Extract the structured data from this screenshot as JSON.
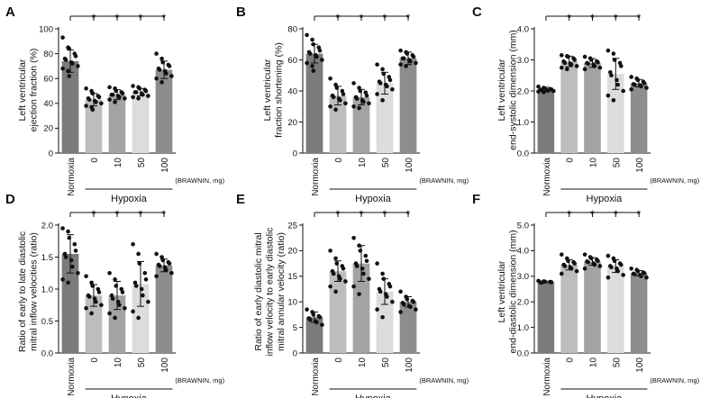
{
  "chart_data": [
    {
      "type": "bar",
      "panel": "A",
      "ylabel_lines": [
        "Left ventricular",
        "ejection fraction (%)"
      ],
      "ylim": [
        0,
        100
      ],
      "yticks": [
        0,
        20,
        40,
        60,
        80,
        100
      ],
      "categories": [
        "Normoxia",
        "0",
        "10",
        "50",
        "100"
      ],
      "group_label": "Hypoxia",
      "unit_label": "(BRAWNIN, mg)",
      "values": [
        74,
        43,
        47,
        49,
        67
      ],
      "errors": [
        9,
        5,
        4,
        3,
        7
      ],
      "points": [
        [
          93,
          85,
          84,
          80,
          78,
          76,
          75,
          73,
          72,
          70,
          68,
          66,
          62
        ],
        [
          52,
          50,
          48,
          46,
          45,
          44,
          43,
          42,
          41,
          40,
          38,
          37,
          35
        ],
        [
          53,
          52,
          50,
          49,
          48,
          47,
          47,
          46,
          45,
          44,
          43,
          41
        ],
        [
          54,
          53,
          52,
          51,
          50,
          49,
          49,
          48,
          47,
          46,
          45,
          44
        ],
        [
          80,
          76,
          73,
          71,
          70,
          68,
          67,
          66,
          64,
          62,
          60,
          57
        ]
      ],
      "significance": [
        "*",
        "*",
        "*",
        "*"
      ],
      "colors": [
        "#7b7b7b",
        "#bdbdbd",
        "#a3a3a3",
        "#dcdcdc",
        "#8d8d8d"
      ]
    },
    {
      "type": "bar",
      "panel": "B",
      "ylabel_lines": [
        "Left ventricular",
        "fraction shortening (%)"
      ],
      "ylim": [
        0,
        80
      ],
      "yticks": [
        0,
        20,
        40,
        60,
        80
      ],
      "categories": [
        "Normoxia",
        "0",
        "10",
        "50",
        "100"
      ],
      "group_label": "Hypoxia",
      "unit_label": "(BRAWNIN, mg)",
      "values": [
        64,
        37,
        36,
        45,
        61
      ],
      "errors": [
        6,
        6,
        5,
        7,
        4
      ],
      "points": [
        [
          76,
          73,
          70,
          68,
          66,
          65,
          64,
          63,
          62,
          60,
          58,
          56,
          53
        ],
        [
          48,
          44,
          42,
          40,
          38,
          37,
          36,
          35,
          34,
          32,
          30,
          28
        ],
        [
          45,
          42,
          40,
          39,
          37,
          36,
          35,
          34,
          33,
          32,
          30,
          29
        ],
        [
          57,
          54,
          51,
          49,
          47,
          46,
          45,
          44,
          43,
          41,
          38,
          34
        ],
        [
          66,
          65,
          64,
          63,
          62,
          61,
          61,
          60,
          59,
          58,
          57,
          56
        ]
      ],
      "significance": [
        "*",
        "*",
        "*",
        "*"
      ],
      "colors": [
        "#7b7b7b",
        "#bdbdbd",
        "#a3a3a3",
        "#dcdcdc",
        "#8d8d8d"
      ]
    },
    {
      "type": "bar",
      "panel": "C",
      "ylabel_lines": [
        "Left ventricular",
        "end-systolic dimension (mm)"
      ],
      "ylim": [
        0,
        4
      ],
      "yticks": [
        0,
        1,
        2,
        3,
        4
      ],
      "tick_format": 1,
      "categories": [
        "Normoxia",
        "0",
        "10",
        "50",
        "100"
      ],
      "group_label": "Hypoxia",
      "unit_label": "(BRAWNIN, mg)",
      "values": [
        2.05,
        2.95,
        2.9,
        2.55,
        2.25
      ],
      "errors": [
        0.07,
        0.17,
        0.14,
        0.5,
        0.12
      ],
      "points": [
        [
          2.14,
          2.1,
          2.08,
          2.06,
          2.05,
          2.04,
          2.03,
          2.02,
          2.01,
          2.0,
          1.98,
          1.96
        ],
        [
          3.15,
          3.12,
          3.1,
          3.05,
          3.0,
          2.95,
          2.9,
          2.88,
          2.85,
          2.8,
          2.75,
          2.7
        ],
        [
          3.1,
          3.05,
          3.0,
          2.95,
          2.92,
          2.9,
          2.88,
          2.85,
          2.8,
          2.75,
          2.7
        ],
        [
          3.3,
          3.2,
          3.0,
          2.9,
          2.8,
          2.6,
          2.5,
          2.35,
          2.2,
          2.0,
          1.85,
          1.7
        ],
        [
          2.45,
          2.4,
          2.35,
          2.3,
          2.25,
          2.22,
          2.2,
          2.18,
          2.15,
          2.1,
          2.05
        ]
      ],
      "significance": [
        "*",
        "*",
        "*",
        "*"
      ],
      "colors": [
        "#7b7b7b",
        "#bdbdbd",
        "#a3a3a3",
        "#dcdcdc",
        "#8d8d8d"
      ]
    },
    {
      "type": "bar",
      "panel": "D",
      "ylabel_lines": [
        "Ratio of early to late diastolic",
        "mitral inflow velocities (ratio)"
      ],
      "ylim": [
        0,
        2
      ],
      "yticks": [
        0,
        0.5,
        1,
        1.5,
        2
      ],
      "tick_format": 1,
      "categories": [
        "Normoxia",
        "0",
        "10",
        "50",
        "100"
      ],
      "group_label": "Hypoxia",
      "unit_label": "(BRAWNIN, mg)",
      "values": [
        1.55,
        0.9,
        0.9,
        1.08,
        1.37
      ],
      "errors": [
        0.3,
        0.17,
        0.22,
        0.35,
        0.1
      ],
      "points": [
        [
          1.95,
          1.9,
          1.8,
          1.7,
          1.6,
          1.55,
          1.5,
          1.45,
          1.35,
          1.25,
          1.15,
          1.1
        ],
        [
          1.2,
          1.1,
          1.05,
          1.0,
          0.95,
          0.9,
          0.88,
          0.85,
          0.8,
          0.75,
          0.7,
          0.62
        ],
        [
          1.25,
          1.15,
          1.05,
          1.0,
          0.95,
          0.9,
          0.85,
          0.8,
          0.75,
          0.7,
          0.62,
          0.55
        ],
        [
          1.7,
          1.55,
          1.4,
          1.25,
          1.15,
          1.1,
          1.05,
          1.0,
          0.9,
          0.8,
          0.65,
          0.55
        ],
        [
          1.55,
          1.5,
          1.45,
          1.42,
          1.4,
          1.38,
          1.36,
          1.34,
          1.3,
          1.25,
          1.2
        ]
      ],
      "significance": [
        "*",
        "*",
        "*",
        "*"
      ],
      "colors": [
        "#7b7b7b",
        "#bdbdbd",
        "#a3a3a3",
        "#dcdcdc",
        "#8d8d8d"
      ]
    },
    {
      "type": "bar",
      "panel": "E",
      "ylabel_lines": [
        "Ratio of early diastolic mitral",
        "inflow velocity to early diastolic",
        "mitral annular velocity (ratio)"
      ],
      "ylim": [
        0,
        25
      ],
      "yticks": [
        0,
        5,
        10,
        15,
        20,
        25
      ],
      "categories": [
        "Normoxia",
        "0",
        "10",
        "50",
        "100"
      ],
      "group_label": "Hypoxia",
      "unit_label": "(BRAWNIN, mg)",
      "values": [
        7,
        16,
        17.5,
        12,
        10
      ],
      "errors": [
        1,
        2,
        3.5,
        2.5,
        1
      ],
      "points": [
        [
          8.5,
          8.0,
          7.5,
          7.2,
          7.0,
          6.8,
          6.5,
          6.2,
          6.0,
          5.5
        ],
        [
          20.0,
          18.5,
          17.5,
          17.0,
          16.5,
          16.0,
          15.5,
          15.0,
          14.5,
          14.0,
          13.0,
          12.0
        ],
        [
          22.5,
          21.0,
          20.0,
          19.0,
          18.0,
          17.5,
          17.0,
          16.5,
          15.5,
          14.5,
          13.0,
          11.5
        ],
        [
          17.5,
          15.5,
          14.5,
          13.5,
          13.0,
          12.5,
          12.0,
          11.5,
          11.0,
          10.0,
          8.5,
          7.0
        ],
        [
          12.0,
          11.0,
          10.5,
          10.2,
          10.0,
          9.8,
          9.5,
          9.2,
          9.0,
          8.5,
          8.0
        ]
      ],
      "significance": [
        "*",
        "*",
        "*",
        "*"
      ],
      "colors": [
        "#7b7b7b",
        "#bdbdbd",
        "#a3a3a3",
        "#dcdcdc",
        "#8d8d8d"
      ]
    },
    {
      "type": "bar",
      "panel": "F",
      "ylabel_lines": [
        "Left ventricular",
        "end-diastolic dimension (mm)"
      ],
      "ylim": [
        0,
        5
      ],
      "yticks": [
        0,
        1,
        2,
        3,
        4,
        5
      ],
      "tick_format": 1,
      "categories": [
        "Normoxia",
        "0",
        "10",
        "50",
        "100"
      ],
      "group_label": "Hypoxia",
      "unit_label": "(BRAWNIN, mg)",
      "values": [
        2.78,
        3.45,
        3.58,
        3.4,
        3.12
      ],
      "errors": [
        0.03,
        0.2,
        0.15,
        0.25,
        0.1
      ],
      "points": [
        [
          2.82,
          2.8,
          2.79,
          2.78,
          2.77,
          2.76,
          2.75
        ],
        [
          3.85,
          3.7,
          3.6,
          3.55,
          3.5,
          3.45,
          3.4,
          3.35,
          3.3,
          3.2,
          3.1
        ],
        [
          3.85,
          3.75,
          3.7,
          3.65,
          3.6,
          3.58,
          3.55,
          3.5,
          3.45,
          3.4,
          3.3
        ],
        [
          3.8,
          3.7,
          3.6,
          3.5,
          3.45,
          3.4,
          3.35,
          3.3,
          3.2,
          3.05,
          2.95
        ],
        [
          3.3,
          3.25,
          3.2,
          3.15,
          3.12,
          3.1,
          3.08,
          3.05,
          3.0,
          2.95
        ]
      ],
      "significance": [
        "*",
        "*",
        "*",
        "*"
      ],
      "colors": [
        "#7b7b7b",
        "#bdbdbd",
        "#a3a3a3",
        "#dcdcdc",
        "#8d8d8d"
      ]
    }
  ]
}
